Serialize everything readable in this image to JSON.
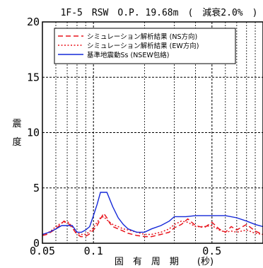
{
  "chart_data": {
    "type": "line",
    "title": "1F-5　RSW　O.P. 19.68m　(　減衰2.0%　)",
    "xlabel": "固　有　周　期　　(秒)",
    "ylabel": "震　度",
    "x_scale": "log",
    "xlim": [
      0.05,
      1.0
    ],
    "ylim": [
      0,
      20
    ],
    "x_ticks": [
      0.05,
      0.1,
      0.5
    ],
    "x_tick_labels": [
      "0.05",
      "0.1",
      "0.5"
    ],
    "y_ticks": [
      0,
      5,
      10,
      15,
      20
    ],
    "y_tick_labels": [
      "0",
      "5",
      "10",
      "15",
      "20"
    ],
    "grid": true,
    "legend_position": "top",
    "series": [
      {
        "name": "シミュレーション解析結果 (NS方向)",
        "color": "#e8141c",
        "style": "dashed",
        "x": [
          0.05,
          0.053,
          0.056,
          0.06,
          0.064,
          0.067,
          0.071,
          0.075,
          0.079,
          0.084,
          0.089,
          0.094,
          0.1,
          0.105,
          0.11,
          0.115,
          0.12,
          0.125,
          0.13,
          0.14,
          0.15,
          0.16,
          0.17,
          0.18,
          0.2,
          0.22,
          0.25,
          0.28,
          0.3,
          0.33,
          0.36,
          0.4,
          0.45,
          0.5,
          0.55,
          0.6,
          0.65,
          0.7,
          0.8,
          0.9,
          1.0
        ],
        "y": [
          0.7,
          0.8,
          1.0,
          1.3,
          1.7,
          2.0,
          1.8,
          1.4,
          0.9,
          0.6,
          0.6,
          0.8,
          1.2,
          1.6,
          2.2,
          2.7,
          2.3,
          1.8,
          1.5,
          1.3,
          1.1,
          0.9,
          0.8,
          0.7,
          0.6,
          0.6,
          0.8,
          1.0,
          1.4,
          1.7,
          2.2,
          1.6,
          1.4,
          1.9,
          1.3,
          1.0,
          1.5,
          1.2,
          1.7,
          1.1,
          0.8
        ]
      },
      {
        "name": "シミュレーション解析結果 (EW方向)",
        "color": "#e8141c",
        "style": "dotted",
        "x": [
          0.05,
          0.053,
          0.056,
          0.06,
          0.064,
          0.067,
          0.071,
          0.075,
          0.079,
          0.084,
          0.089,
          0.094,
          0.1,
          0.105,
          0.11,
          0.115,
          0.12,
          0.125,
          0.13,
          0.14,
          0.15,
          0.16,
          0.17,
          0.18,
          0.2,
          0.22,
          0.25,
          0.28,
          0.3,
          0.33,
          0.36,
          0.4,
          0.45,
          0.5,
          0.55,
          0.6,
          0.65,
          0.7,
          0.8,
          0.9,
          1.0
        ],
        "y": [
          0.8,
          0.9,
          1.1,
          1.5,
          1.8,
          1.9,
          1.9,
          1.5,
          1.0,
          0.8,
          0.8,
          1.0,
          1.4,
          1.9,
          2.3,
          2.4,
          2.1,
          1.9,
          1.7,
          1.5,
          1.3,
          1.2,
          1.1,
          1.0,
          0.8,
          0.8,
          1.0,
          1.3,
          1.7,
          2.0,
          1.9,
          1.5,
          1.5,
          1.6,
          1.2,
          1.0,
          1.1,
          1.0,
          1.2,
          0.9,
          0.8
        ]
      },
      {
        "name": "基準地震動Ss (NSEW包絡)",
        "color": "#1428d8",
        "style": "solid",
        "x": [
          0.05,
          0.055,
          0.06,
          0.065,
          0.07,
          0.075,
          0.08,
          0.085,
          0.09,
          0.095,
          0.1,
          0.105,
          0.11,
          0.115,
          0.12,
          0.13,
          0.14,
          0.15,
          0.16,
          0.18,
          0.2,
          0.22,
          0.25,
          0.28,
          0.3,
          0.35,
          0.4,
          0.5,
          0.6,
          0.7,
          0.8,
          0.9,
          1.0
        ],
        "y": [
          0.8,
          1.0,
          1.3,
          1.6,
          1.6,
          1.6,
          1.0,
          1.0,
          1.2,
          1.5,
          2.5,
          3.5,
          4.6,
          4.6,
          4.6,
          3.3,
          2.3,
          1.7,
          1.3,
          1.0,
          1.0,
          1.3,
          1.6,
          2.0,
          2.4,
          2.4,
          2.5,
          2.5,
          2.5,
          2.3,
          2.0,
          1.7,
          1.5
        ]
      }
    ]
  }
}
